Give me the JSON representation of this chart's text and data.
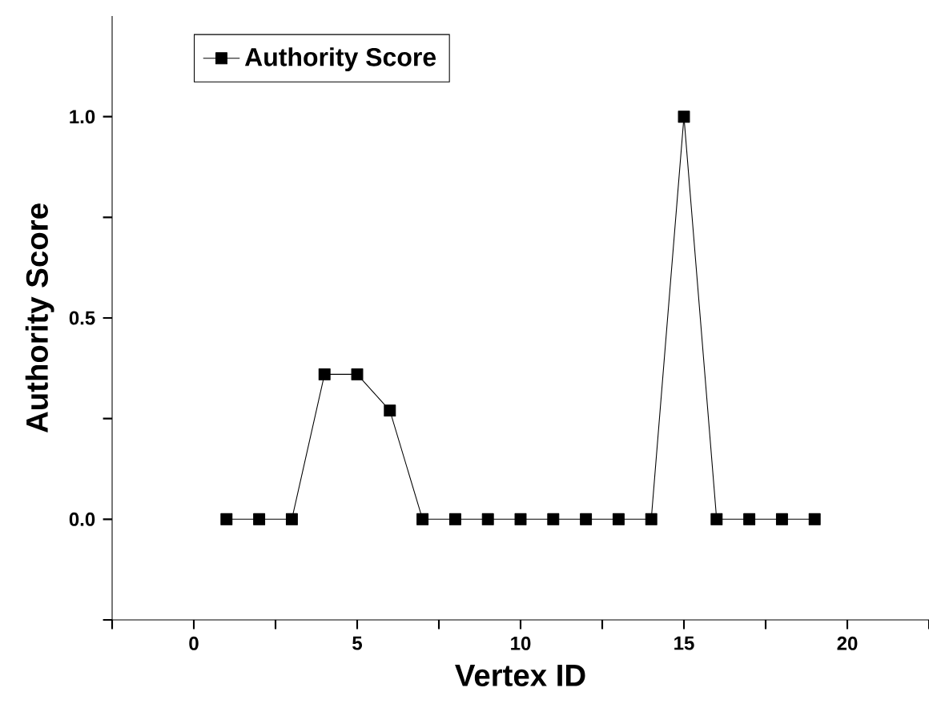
{
  "chart_data": {
    "type": "line",
    "xlabel": "Vertex ID",
    "ylabel": "Authority Score",
    "x": [
      1,
      2,
      3,
      4,
      5,
      6,
      7,
      8,
      9,
      10,
      11,
      12,
      13,
      14,
      15,
      16,
      17,
      18,
      19
    ],
    "series": [
      {
        "name": "Authority Score",
        "color": "#000000",
        "values": [
          0,
          0,
          0,
          0.36,
          0.36,
          0.27,
          0,
          0,
          0,
          0,
          0,
          0,
          0,
          0,
          1.0,
          0,
          0,
          0,
          0
        ]
      }
    ],
    "xlim": [
      -2.5,
      22.5
    ],
    "ylim": [
      -0.25,
      1.25
    ],
    "xticks": [
      {
        "value": -2.5,
        "label": null
      },
      0,
      {
        "value": 2.5,
        "label": null
      },
      5,
      {
        "value": 7.5,
        "label": null
      },
      10,
      {
        "value": 12.5,
        "label": null
      },
      15,
      {
        "value": 17.5,
        "label": null
      },
      20,
      {
        "value": 22.5,
        "label": null
      }
    ],
    "yticks": [
      {
        "value": -0.25,
        "label": null
      },
      {
        "value": 0,
        "label": "0.0"
      },
      {
        "value": 0.25,
        "label": null
      },
      {
        "value": 0.5,
        "label": "0.5"
      },
      {
        "value": 0.75,
        "label": null
      },
      {
        "value": 1.0,
        "label": "1.0"
      }
    ],
    "legend": "top left",
    "marker": "square",
    "line_style": "solid",
    "grid": false
  }
}
